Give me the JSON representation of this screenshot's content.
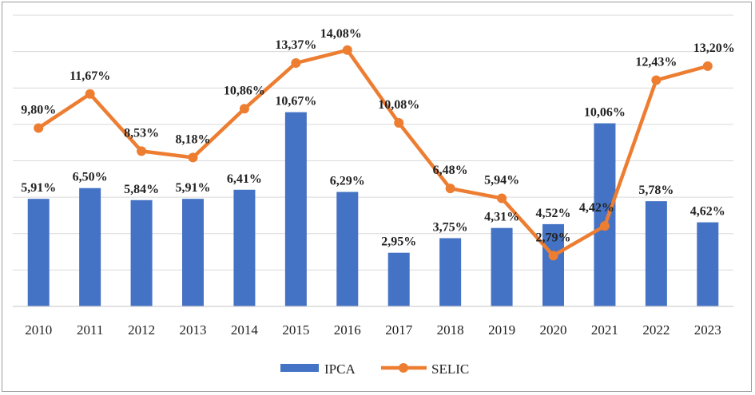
{
  "chart_data": {
    "type": "bar",
    "categories": [
      "2010",
      "2011",
      "2012",
      "2013",
      "2014",
      "2015",
      "2016",
      "2017",
      "2018",
      "2019",
      "2020",
      "2021",
      "2022",
      "2023"
    ],
    "series": [
      {
        "name": "IPCA",
        "kind": "bar",
        "color": "#4472c4",
        "values": [
          5.91,
          6.5,
          5.84,
          5.91,
          6.41,
          10.67,
          6.29,
          2.95,
          3.75,
          4.31,
          4.52,
          10.06,
          5.78,
          4.62
        ],
        "labels": [
          "5,91%",
          "6,50%",
          "5,84%",
          "5,91%",
          "6,41%",
          "10,67%",
          "6,29%",
          "2,95%",
          "3,75%",
          "4,31%",
          "4,52%",
          "10,06%",
          "5,78%",
          "4,62%"
        ]
      },
      {
        "name": "SELIC",
        "kind": "line",
        "color": "#ed7d31",
        "values": [
          9.8,
          11.67,
          8.53,
          8.18,
          10.86,
          13.37,
          14.08,
          10.08,
          6.48,
          5.94,
          2.79,
          4.42,
          12.43,
          13.2
        ],
        "labels": [
          "9,80%",
          "11,67%",
          "8,53%",
          "8,18%",
          "10,86%",
          "13,37%",
          "14,08%",
          "10,08%",
          "6,48%",
          "5,94%",
          "2,79%",
          "4,42%",
          "12,43%",
          "13,20%"
        ]
      }
    ],
    "ylim": [
      0,
      16
    ],
    "gridlines": [
      2,
      4,
      6,
      8,
      10,
      12,
      14,
      16
    ],
    "legend_position": "bottom",
    "title": "",
    "xlabel": "",
    "ylabel": ""
  }
}
